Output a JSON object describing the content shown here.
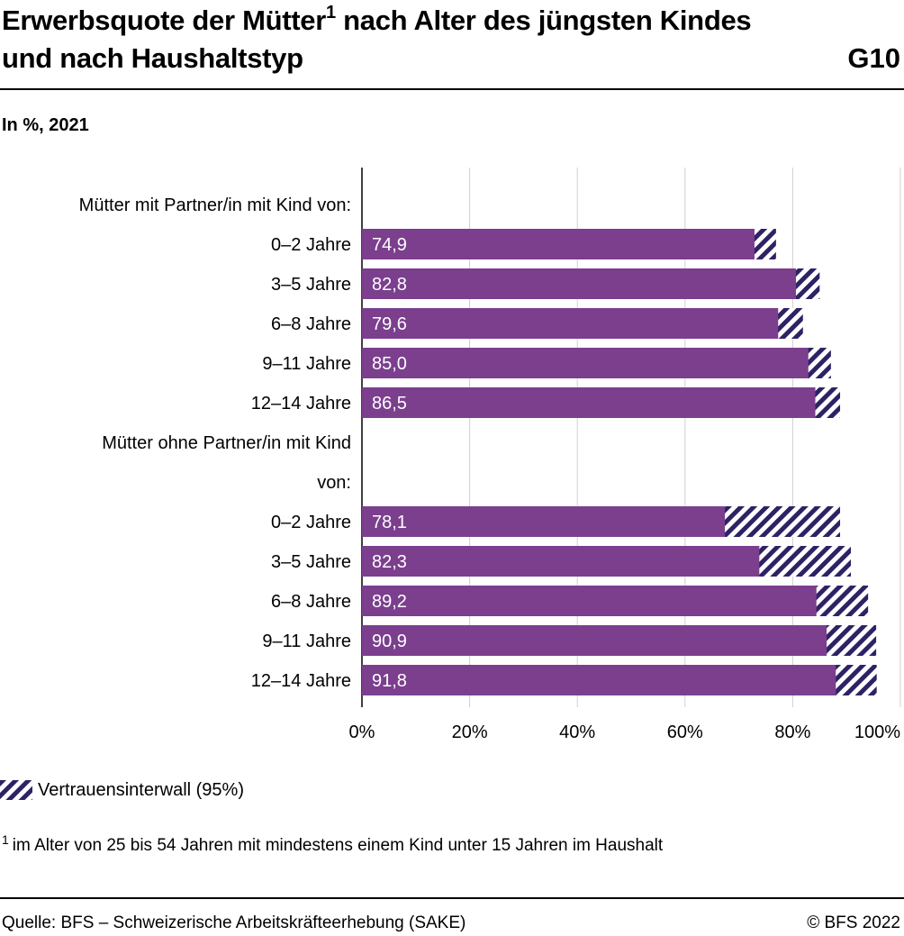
{
  "header": {
    "title_part1": "Erwerbsquote der Mütter",
    "title_footnote_mark": "1",
    "title_part2": " nach Alter des jüngsten Kindes und nach Haushaltstyp",
    "code": "G10"
  },
  "subtitle": "In %, 2021",
  "chart_data": {
    "type": "bar",
    "orientation": "horizontal",
    "xlim": [
      0,
      100
    ],
    "x_ticks": [
      "0%",
      "20%",
      "40%",
      "60%",
      "80%",
      "100%"
    ],
    "x_tick_values": [
      0,
      20,
      40,
      60,
      80,
      100
    ],
    "grid": true,
    "bar_color": "#7b3f8e",
    "ci_color": "#2e2265",
    "groups": [
      {
        "label": "Mütter mit Partner/in mit Kind von:",
        "label_lines": [
          "Mütter mit Partner/in mit Kind von:"
        ],
        "bars": [
          {
            "category": "0–2 Jahre",
            "value": 74.9,
            "value_label": "74,9",
            "ci_low": 72.9,
            "ci_high": 76.9
          },
          {
            "category": "3–5 Jahre",
            "value": 82.8,
            "value_label": "82,8",
            "ci_low": 80.6,
            "ci_high": 85.0
          },
          {
            "category": "6–8 Jahre",
            "value": 79.6,
            "value_label": "79,6",
            "ci_low": 77.3,
            "ci_high": 81.9
          },
          {
            "category": "9–11 Jahre",
            "value": 85.0,
            "value_label": "85,0",
            "ci_low": 82.9,
            "ci_high": 87.1
          },
          {
            "category": "12–14 Jahre",
            "value": 86.5,
            "value_label": "86,5",
            "ci_low": 84.2,
            "ci_high": 88.8
          }
        ]
      },
      {
        "label": "Mütter ohne Partner/in mit Kind von:",
        "label_lines": [
          "Mütter ohne Partner/in mit Kind",
          "von:"
        ],
        "bars": [
          {
            "category": "0–2 Jahre",
            "value": 78.1,
            "value_label": "78,1",
            "ci_low": 67.4,
            "ci_high": 88.8
          },
          {
            "category": "3–5 Jahre",
            "value": 82.3,
            "value_label": "82,3",
            "ci_low": 73.8,
            "ci_high": 90.8
          },
          {
            "category": "6–8 Jahre",
            "value": 89.2,
            "value_label": "89,2",
            "ci_low": 84.4,
            "ci_high": 94.0
          },
          {
            "category": "9–11 Jahre",
            "value": 90.9,
            "value_label": "90,9",
            "ci_low": 86.3,
            "ci_high": 95.5
          },
          {
            "category": "12–14 Jahre",
            "value": 91.8,
            "value_label": "91,8",
            "ci_low": 88.0,
            "ci_high": 95.6
          }
        ]
      }
    ]
  },
  "legend": {
    "ci_label": "Vertrauensinterwall (95%)"
  },
  "footnote": {
    "mark": "1",
    "text": "im Alter von 25 bis 54 Jahren mit mindestens einem Kind unter 15 Jahren im Haushalt"
  },
  "footer": {
    "source": "Quelle: BFS – Schweizerische Arbeitskräfteerhebung (SAKE)",
    "copyright": "© BFS 2022"
  }
}
